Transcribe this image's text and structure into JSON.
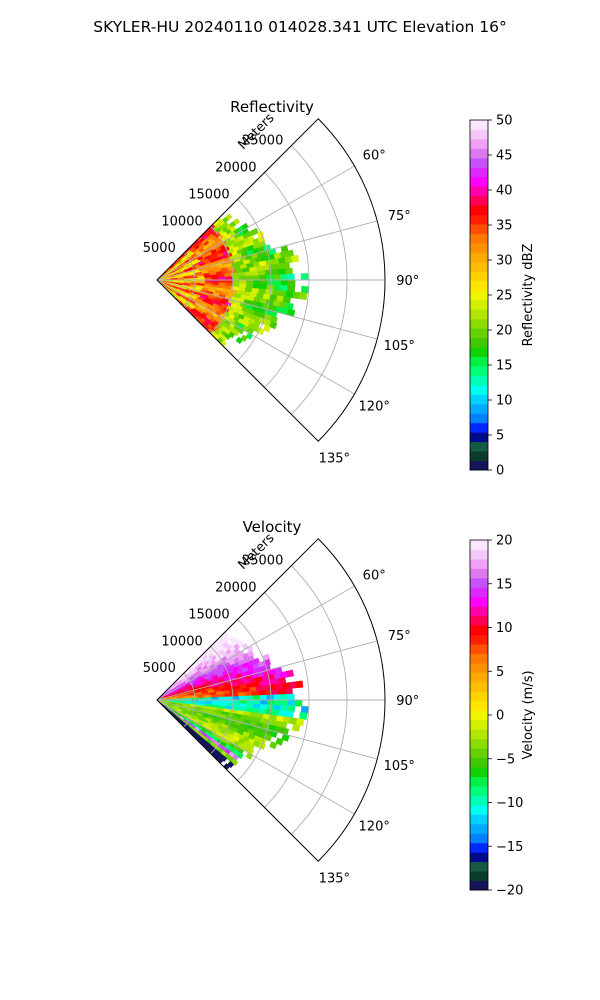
{
  "suptitle": "SKYLER-HU  20240110  014028.341 UTC Elevation 16°",
  "chart_data": [
    {
      "type": "heatmap",
      "title": "Reflectivity",
      "radial_axis_label": "Meters",
      "radial_ticks": [
        "5000",
        "10000",
        "15000",
        "20000",
        "25000"
      ],
      "radial_tick_values": [
        5000,
        10000,
        15000,
        20000,
        25000
      ],
      "radial_max": 30000,
      "azimuth_ticks": [
        "60°",
        "75°",
        "90°",
        "105°",
        "120°",
        "135°"
      ],
      "azimuth_tick_values": [
        60,
        75,
        90,
        105,
        120,
        135
      ],
      "azimuth_range": [
        45,
        135
      ],
      "data_range_max": 20000,
      "grid": true,
      "colorbar": {
        "label": "Reflectivity dBZ",
        "range": [
          0,
          50
        ],
        "ticks": [
          "0",
          "5",
          "10",
          "15",
          "20",
          "25",
          "30",
          "35",
          "40",
          "45",
          "50"
        ],
        "colors": [
          "#14145a",
          "#0a3c2d",
          "#145a46",
          "#000a8c",
          "#0028ff",
          "#0082ff",
          "#00aaff",
          "#00d2ff",
          "#00ffee",
          "#00ffb4",
          "#00ff78",
          "#00f044",
          "#10d200",
          "#40c800",
          "#64d200",
          "#8cdc00",
          "#b4e600",
          "#d2f000",
          "#f0f500",
          "#ffe600",
          "#ffd200",
          "#ffbe00",
          "#ffaa00",
          "#ff9000",
          "#ff7800",
          "#ff5000",
          "#ff1e00",
          "#ff0000",
          "#ff0055",
          "#ff00aa",
          "#ff00ff",
          "#dc28ff",
          "#c850ff",
          "#dc78f0",
          "#f0a0f5",
          "#f5c8fa",
          "#fae6fd"
        ]
      }
    },
    {
      "type": "heatmap",
      "title": "Velocity",
      "radial_axis_label": "Meters",
      "radial_ticks": [
        "5000",
        "10000",
        "15000",
        "20000",
        "25000"
      ],
      "radial_tick_values": [
        5000,
        10000,
        15000,
        20000,
        25000
      ],
      "radial_max": 30000,
      "azimuth_ticks": [
        "60°",
        "75°",
        "90°",
        "105°",
        "120°",
        "135°"
      ],
      "azimuth_tick_values": [
        60,
        75,
        90,
        105,
        120,
        135
      ],
      "azimuth_range": [
        45,
        135
      ],
      "data_range_max": 20000,
      "grid": true,
      "colorbar": {
        "label": "Velocity (m/s)",
        "range": [
          -20,
          20
        ],
        "ticks": [
          "−20",
          "−15",
          "−10",
          "−5",
          "0",
          "5",
          "10",
          "15",
          "20"
        ],
        "colors": [
          "#14145a",
          "#0a3c2d",
          "#145a46",
          "#000a8c",
          "#0028ff",
          "#0082ff",
          "#00aaff",
          "#00d2ff",
          "#00ffee",
          "#00ffb4",
          "#00ff78",
          "#00f044",
          "#10d200",
          "#40c800",
          "#64d200",
          "#8cdc00",
          "#b4e600",
          "#d2f000",
          "#f0f500",
          "#ffe600",
          "#ffd200",
          "#ffbe00",
          "#ffaa00",
          "#ff9000",
          "#ff7800",
          "#ff5000",
          "#ff1e00",
          "#ff0000",
          "#ff0055",
          "#ff00aa",
          "#ff00ff",
          "#dc28ff",
          "#c850ff",
          "#dc78f0",
          "#f0a0f5",
          "#f5c8fa",
          "#fae6fd"
        ]
      }
    }
  ]
}
